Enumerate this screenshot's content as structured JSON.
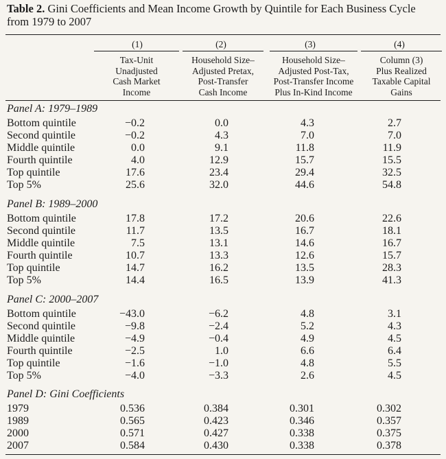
{
  "table": {
    "title_number": "Table 2.",
    "title_text": "Gini Coefficients and Mean Income Growth by Quintile for Each Business Cycle from 1979 to 2007",
    "column_numbers": [
      "(1)",
      "(2)",
      "(3)",
      "(4)"
    ],
    "column_headers": [
      [
        "Tax-Unit",
        "Unadjusted",
        "Cash Market",
        "Income"
      ],
      [
        "Household Size–",
        "Adjusted Pretax,",
        "Post-Transfer",
        "Cash Income"
      ],
      [
        "Household Size–",
        "Adjusted Post-Tax,",
        "Post-Transfer Income",
        "Plus In-Kind Income"
      ],
      [
        "Column (3)",
        "Plus Realized",
        "Taxable Capital",
        "Gains"
      ]
    ],
    "panels": [
      {
        "label": "Panel A: 1979–1989",
        "rows": [
          {
            "label": "Bottom quintile",
            "values": [
              "−0.2",
              "0.0",
              "4.3",
              "2.7"
            ]
          },
          {
            "label": "Second quintile",
            "values": [
              "−0.2",
              "4.3",
              "7.0",
              "7.0"
            ]
          },
          {
            "label": "Middle quintile",
            "values": [
              "0.0",
              "9.1",
              "11.8",
              "11.9"
            ]
          },
          {
            "label": "Fourth quintile",
            "values": [
              "4.0",
              "12.9",
              "15.7",
              "15.5"
            ]
          },
          {
            "label": "Top quintile",
            "values": [
              "17.6",
              "23.4",
              "29.4",
              "32.5"
            ]
          },
          {
            "label": "Top 5%",
            "values": [
              "25.6",
              "32.0",
              "44.6",
              "54.8"
            ]
          }
        ]
      },
      {
        "label": "Panel B: 1989–2000",
        "rows": [
          {
            "label": "Bottom quintile",
            "values": [
              "17.8",
              "17.2",
              "20.6",
              "22.6"
            ]
          },
          {
            "label": "Second quintile",
            "values": [
              "11.7",
              "13.5",
              "16.7",
              "18.1"
            ]
          },
          {
            "label": "Middle quintile",
            "values": [
              "7.5",
              "13.1",
              "14.6",
              "16.7"
            ]
          },
          {
            "label": "Fourth quintile",
            "values": [
              "10.7",
              "13.3",
              "12.6",
              "15.7"
            ]
          },
          {
            "label": "Top quintile",
            "values": [
              "14.7",
              "16.2",
              "13.5",
              "28.3"
            ]
          },
          {
            "label": "Top 5%",
            "values": [
              "14.4",
              "16.5",
              "13.9",
              "41.3"
            ]
          }
        ]
      },
      {
        "label": "Panel C: 2000–2007",
        "rows": [
          {
            "label": "Bottom quintile",
            "values": [
              "−43.0",
              "−6.2",
              "4.8",
              "3.1"
            ]
          },
          {
            "label": "Second quintile",
            "values": [
              "−9.8",
              "−2.4",
              "5.2",
              "4.3"
            ]
          },
          {
            "label": "Middle quintile",
            "values": [
              "−4.9",
              "−0.4",
              "4.9",
              "4.5"
            ]
          },
          {
            "label": "Fourth quintile",
            "values": [
              "−2.5",
              "1.0",
              "6.6",
              "6.4"
            ]
          },
          {
            "label": "Top quintile",
            "values": [
              "−1.6",
              "−1.0",
              "4.8",
              "5.5"
            ]
          },
          {
            "label": "Top 5%",
            "values": [
              "−4.0",
              "−3.3",
              "2.6",
              "4.5"
            ]
          }
        ]
      },
      {
        "label": "Panel D: Gini Coefficients",
        "rows": [
          {
            "label": "1979",
            "values": [
              "0.536",
              "0.384",
              "0.301",
              "0.302"
            ]
          },
          {
            "label": "1989",
            "values": [
              "0.565",
              "0.423",
              "0.346",
              "0.357"
            ]
          },
          {
            "label": "2000",
            "values": [
              "0.571",
              "0.427",
              "0.338",
              "0.375"
            ]
          },
          {
            "label": "2007",
            "values": [
              "0.584",
              "0.430",
              "0.338",
              "0.378"
            ]
          }
        ]
      }
    ]
  }
}
